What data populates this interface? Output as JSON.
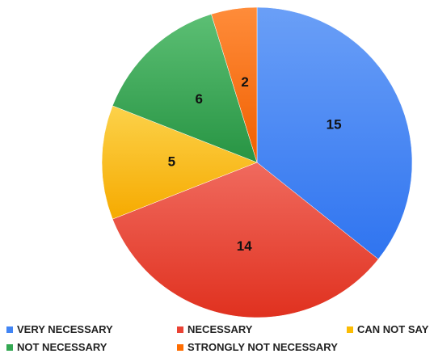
{
  "chart_data": {
    "type": "pie",
    "categories": [
      "VERY NECESSARY",
      "NECESSARY",
      "CAN NOT SAY",
      "NOT NECESSARY",
      "STRONGLY NOT NECESSARY"
    ],
    "values": [
      15,
      14,
      5,
      6,
      2
    ],
    "data_labels": [
      "15",
      "14",
      "5",
      "6",
      "2"
    ],
    "colors": [
      "#4285f4",
      "#ea4335",
      "#fbbc04",
      "#34a853",
      "#ff6d01"
    ],
    "start_angle_deg": 0,
    "direction": "clockwise",
    "legend_position": "bottom"
  }
}
